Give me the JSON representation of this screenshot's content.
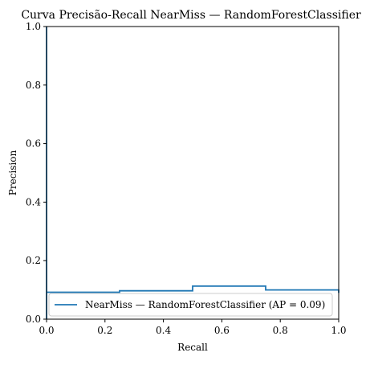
{
  "chart_data": {
    "type": "line",
    "title": "Curva Precisão-Recall NearMiss — RandomForestClassifier",
    "xlabel": "Recall",
    "ylabel": "Precision",
    "xlim": [
      0.0,
      1.0
    ],
    "ylim": [
      0.0,
      1.0
    ],
    "xticks": [
      "0.0",
      "0.2",
      "0.4",
      "0.6",
      "0.8",
      "1.0"
    ],
    "yticks": [
      "0.0",
      "0.2",
      "0.4",
      "0.6",
      "0.8",
      "1.0"
    ],
    "grid": false,
    "legend_position": "lower-right",
    "step": "post",
    "series": [
      {
        "name": "NearMiss — RandomForestClassifier (AP = 0.09)",
        "color": "#1f77b4",
        "points": [
          [
            0.0,
            1.0
          ],
          [
            0.0,
            0.0
          ],
          [
            0.0,
            0.092
          ],
          [
            0.25,
            0.092
          ],
          [
            0.25,
            0.097
          ],
          [
            0.5,
            0.097
          ],
          [
            0.5,
            0.113
          ],
          [
            0.75,
            0.113
          ],
          [
            0.75,
            0.1
          ],
          [
            1.0,
            0.1
          ],
          [
            1.0,
            0.09
          ]
        ]
      }
    ]
  }
}
